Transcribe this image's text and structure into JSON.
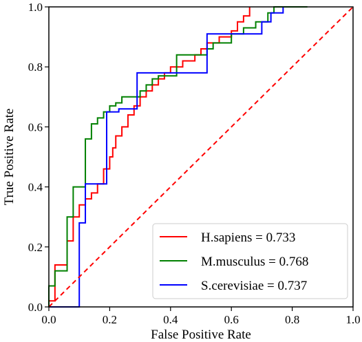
{
  "chart_data": {
    "type": "line",
    "title": "",
    "xlabel": "False Positive Rate",
    "ylabel": "True Positive Rate",
    "xlim": [
      0.0,
      1.0
    ],
    "ylim": [
      0.0,
      1.0
    ],
    "x_ticks": [
      "0.0",
      "0.2",
      "0.4",
      "0.6",
      "0.8",
      "1.0"
    ],
    "y_ticks": [
      "0.0",
      "0.2",
      "0.4",
      "0.6",
      "0.8",
      "1.0"
    ],
    "grid": false,
    "legend_position": "lower-right",
    "series": [
      {
        "name": "H.sapiens = 0.733",
        "color": "#ff0000",
        "x": [
          0.0,
          0.0,
          0.02,
          0.02,
          0.06,
          0.06,
          0.08,
          0.08,
          0.1,
          0.1,
          0.12,
          0.12,
          0.14,
          0.14,
          0.16,
          0.16,
          0.18,
          0.18,
          0.2,
          0.2,
          0.21,
          0.21,
          0.22,
          0.22,
          0.24,
          0.24,
          0.26,
          0.26,
          0.28,
          0.28,
          0.3,
          0.3,
          0.32,
          0.32,
          0.34,
          0.34,
          0.36,
          0.36,
          0.38,
          0.38,
          0.4,
          0.4,
          0.44,
          0.44,
          0.48,
          0.48,
          0.5,
          0.5,
          0.52,
          0.52,
          0.56,
          0.56,
          0.6,
          0.6,
          0.62,
          0.62,
          0.64,
          0.64,
          0.66,
          0.66
        ],
        "y": [
          0.0,
          0.02,
          0.02,
          0.14,
          0.14,
          0.22,
          0.22,
          0.3,
          0.3,
          0.34,
          0.34,
          0.36,
          0.36,
          0.38,
          0.38,
          0.41,
          0.41,
          0.46,
          0.46,
          0.5,
          0.5,
          0.53,
          0.53,
          0.57,
          0.57,
          0.6,
          0.6,
          0.64,
          0.64,
          0.67,
          0.67,
          0.7,
          0.7,
          0.72,
          0.72,
          0.74,
          0.74,
          0.76,
          0.76,
          0.78,
          0.78,
          0.8,
          0.8,
          0.82,
          0.82,
          0.84,
          0.84,
          0.86,
          0.86,
          0.88,
          0.88,
          0.9,
          0.9,
          0.92,
          0.92,
          0.95,
          0.95,
          0.97,
          0.97,
          1.0
        ]
      },
      {
        "name": "M.musculus = 0.768",
        "color": "#008000",
        "x": [
          0.0,
          0.0,
          0.02,
          0.02,
          0.06,
          0.06,
          0.08,
          0.08,
          0.12,
          0.12,
          0.14,
          0.14,
          0.16,
          0.16,
          0.18,
          0.18,
          0.2,
          0.2,
          0.22,
          0.22,
          0.24,
          0.24,
          0.3,
          0.3,
          0.32,
          0.32,
          0.34,
          0.34,
          0.36,
          0.36,
          0.42,
          0.42,
          0.52,
          0.52,
          0.54,
          0.54,
          0.6,
          0.6,
          0.64,
          0.64,
          0.68,
          0.68,
          0.72,
          0.72,
          0.74,
          0.74,
          0.85,
          0.85
        ],
        "y": [
          0.0,
          0.07,
          0.07,
          0.12,
          0.12,
          0.3,
          0.3,
          0.4,
          0.4,
          0.56,
          0.56,
          0.61,
          0.61,
          0.63,
          0.63,
          0.65,
          0.65,
          0.67,
          0.67,
          0.68,
          0.68,
          0.7,
          0.7,
          0.72,
          0.72,
          0.74,
          0.74,
          0.76,
          0.76,
          0.77,
          0.77,
          0.84,
          0.84,
          0.86,
          0.86,
          0.88,
          0.88,
          0.91,
          0.91,
          0.93,
          0.93,
          0.95,
          0.95,
          0.98,
          0.98,
          1.0,
          1.0,
          1.0
        ]
      },
      {
        "name": "S.cerevisiae = 0.737",
        "color": "#0000ff",
        "x": [
          0.0,
          0.1,
          0.1,
          0.12,
          0.12,
          0.19,
          0.19,
          0.23,
          0.23,
          0.29,
          0.29,
          0.52,
          0.52,
          0.7,
          0.7,
          0.73,
          0.73,
          0.77,
          0.77
        ],
        "y": [
          0.0,
          0.0,
          0.28,
          0.28,
          0.41,
          0.41,
          0.65,
          0.65,
          0.66,
          0.66,
          0.78,
          0.78,
          0.91,
          0.91,
          0.95,
          0.95,
          0.98,
          0.98,
          1.0
        ]
      },
      {
        "name": "",
        "color": "#ff0000",
        "dashed": true,
        "x": [
          0.0,
          1.0
        ],
        "y": [
          0.0,
          1.0
        ]
      }
    ]
  }
}
